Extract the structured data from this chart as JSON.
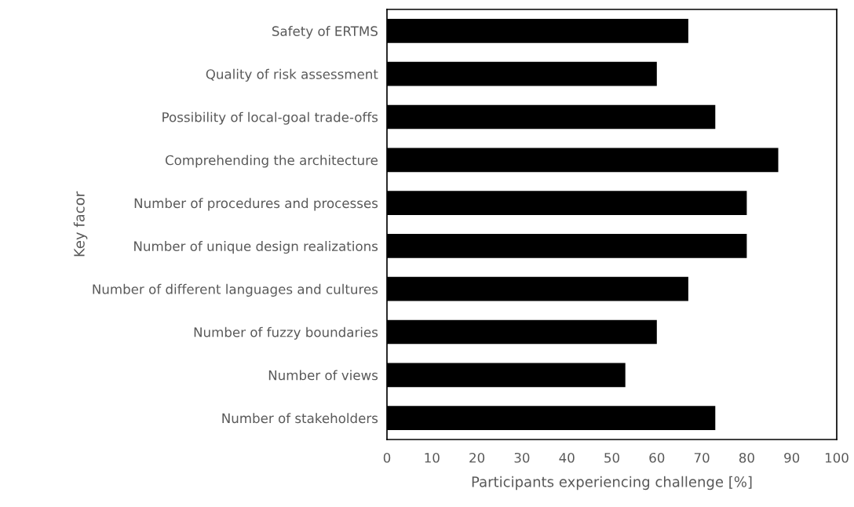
{
  "chart_data": {
    "type": "bar",
    "orientation": "horizontal",
    "xlabel": "Participants experiencing challenge [%]",
    "ylabel": "Key facor",
    "categories": [
      "Safety of ERTMS",
      "Quality of risk assessment",
      "Possibility of local-goal trade-offs",
      "Comprehending the architecture",
      "Number of procedures and processes",
      "Number of unique design realizations",
      "Number of different languages and cultures",
      "Number of fuzzy boundaries",
      "Number of views",
      "Number of stakeholders"
    ],
    "values": [
      67,
      60,
      73,
      87,
      80,
      80,
      67,
      60,
      53,
      73
    ],
    "color": "#000000",
    "xlim": [
      0,
      100
    ],
    "xticks": [
      0,
      10,
      20,
      30,
      40,
      50,
      60,
      70,
      80,
      90,
      100
    ],
    "grid": false,
    "legend": false
  }
}
